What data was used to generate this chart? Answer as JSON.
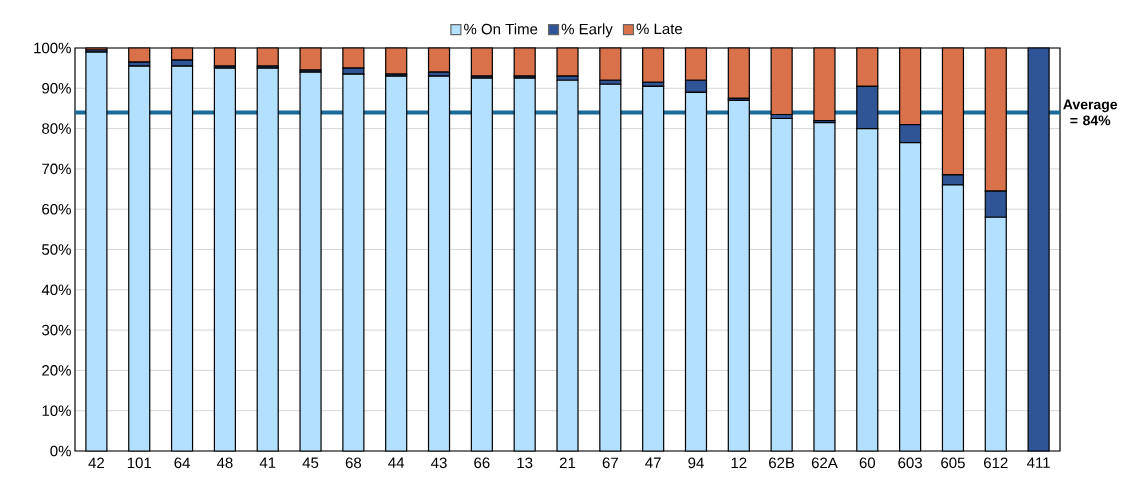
{
  "chart_data": {
    "type": "bar",
    "stacked": true,
    "legend": "top",
    "grid": "y",
    "categories": [
      "42",
      "101",
      "64",
      "48",
      "41",
      "45",
      "68",
      "44",
      "43",
      "66",
      "13",
      "21",
      "67",
      "47",
      "94",
      "12",
      "62B",
      "62A",
      "60",
      "603",
      "605",
      "612",
      "411"
    ],
    "series": [
      {
        "name": "% On Time",
        "color": "#b3e0ff",
        "values": [
          99,
          95.5,
          95.5,
          95,
          95,
          94,
          93.5,
          93,
          93,
          92.5,
          92.5,
          92,
          91,
          90.5,
          89,
          87,
          82.5,
          81.5,
          80,
          76.5,
          66,
          58,
          0
        ]
      },
      {
        "name": "% Early",
        "color": "#2f5597",
        "values": [
          0.5,
          1,
          1.5,
          0.5,
          0.5,
          0.5,
          1.5,
          0.5,
          1,
          0.5,
          0.5,
          1,
          1,
          1,
          3,
          0.5,
          1,
          0.5,
          10.5,
          4.5,
          2.5,
          6.5,
          100
        ]
      },
      {
        "name": "% Late",
        "color": "#d9714a",
        "values": [
          0.5,
          3.5,
          3,
          4.5,
          4.5,
          5.5,
          5,
          6.5,
          6,
          7,
          7,
          7,
          8,
          8.5,
          8,
          12.5,
          16.5,
          18,
          9.5,
          19,
          31.5,
          35.5,
          0
        ]
      }
    ],
    "ylim": [
      0,
      100
    ],
    "yticks": [
      {
        "value": 0,
        "label": "0%"
      },
      {
        "value": 10,
        "label": "10%"
      },
      {
        "value": 20,
        "label": "20%"
      },
      {
        "value": 30,
        "label": "30%"
      },
      {
        "value": 40,
        "label": "40%"
      },
      {
        "value": 50,
        "label": "50%"
      },
      {
        "value": 60,
        "label": "60%"
      },
      {
        "value": 70,
        "label": "70%"
      },
      {
        "value": 80,
        "label": "80%"
      },
      {
        "value": 90,
        "label": "90%"
      },
      {
        "value": 100,
        "label": "100%"
      }
    ],
    "ref_lines": [
      {
        "axis": "y",
        "value": 84,
        "label": "Average = 84%",
        "color": "#1a6a9a"
      }
    ]
  }
}
